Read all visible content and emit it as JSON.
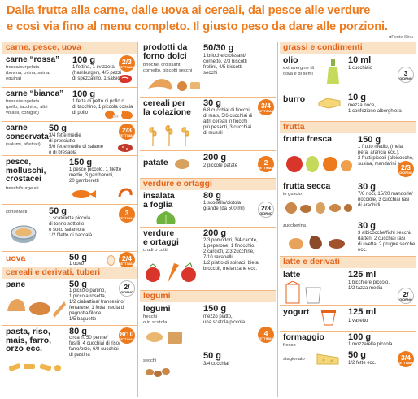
{
  "header": {
    "line1": "Dalla frutta alla carne, dalle uova ai cereali, dal pesce alle verdure",
    "line2": "e così via fino al menu completo. Il giusto peso da dare alle porzioni.",
    "source": "■Fonte Sinu"
  },
  "col1": {
    "cat_meat": "carne, pesce, uova",
    "rossa": {
      "name": "carne “rossa”",
      "sub": "fresca/surgelata\n(bovina, ovina, suina,\nequina)",
      "weight": "100 g",
      "desc": "1 fettina, 1 svizzera\n(hamburger), 4/5 pezzi\ndi spezzatino, 1 salsiccia",
      "badge": "2/3",
      "badge_period": "SETTIMANA"
    },
    "bianca": {
      "name": "carne “bianca”",
      "sub": "fresca/surgelata\n(pollo, tacchino, altri\nvolatili, coniglio)",
      "weight": "100 g",
      "desc": "1 fetta di petto di pollo o\ndi tacchino, 1 piccola coscia\ndi pollo"
    },
    "conservata": {
      "name": "carne\nconservata",
      "sub": "(salumi, affettati)",
      "weight": "50 g",
      "desc": "3/4 fette medie\ndi prosciutto,\n5/6 fette medie di salame\no di bresaola",
      "badge": "2/3",
      "badge_period": "SETTIMANA"
    },
    "pesce": {
      "name": "pesce,\nmolluschi,\ncrostacei",
      "sub": "freschi/surgelati",
      "weight": "150 g",
      "desc": "1 pesce piccolo, 1 filetto\nmedio, 3 gamberoni,\n20 gamberetti"
    },
    "conservati": {
      "sub": "conservati",
      "weight": "50 g",
      "desc": "1 scatoletta piccola\ndi tonno sott'olio\no sotto salamoia,\n1/2 filetto di baccalà",
      "badge": "3",
      "badge_period": "SETTIMANA"
    },
    "uova": {
      "name": "uova",
      "weight": "50 g",
      "desc": "1 uovo",
      "badge": "2/4",
      "badge_period": "SETTIMANA"
    },
    "cat_cereali": "cereali e derivati, tuberi",
    "pane": {
      "name": "pane",
      "weight": "50 g",
      "desc": "1 piccolo panino,\n1 piccola rosetta,\n1/2 ciabattina/ francesino/\nferrarese, 1 fetta media di\npagnotta/filone,\n1/5 baguette",
      "badge": "2/",
      "badge_period": "GIORNO"
    },
    "pasta": {
      "name": "pasta, riso,\nmais, farro,\norzo ecc.",
      "sub": "",
      "weight": "80 g",
      "desc": "circa n. 50 penne/\nfusilli, 4 cucchiai di riso/\nfarro/orzo, 6/8 cucchiai\ndi pastina",
      "badge": "8/10",
      "badge_period": "SETTIMANA"
    }
  },
  "col2": {
    "prodotti": {
      "name": "prodotti da\nforno dolci",
      "sub": "brioche, croissant,\ncornetto, biscotti secchi",
      "weight": "50/30 g",
      "desc": "1 brioche/croissant/\ncornetto, 2/3 biscotti\nfrollini, 4/5 biscotti\nsecchi"
    },
    "colazione": {
      "name": "cereali per\nla colazione",
      "weight": "30 g",
      "desc": "6/8 cucchiai di fiocchi\ndi mais, 5/6 cucchiai di\naltri cereali in fiocchi\npiù pesanti, 3 cucchiai\ndi muesli",
      "badge": "3/4",
      "badge_period": "SETTIMANA"
    },
    "patate": {
      "name": "patate",
      "weight": "200 g",
      "desc": "2 piccole patate",
      "badge": "2",
      "badge_period": "SETTIMANA"
    },
    "cat_verdure": "verdure e ortaggi",
    "insalata": {
      "name": "insalata\na foglia",
      "weight": "80 g",
      "desc": "1 scodella/ciotola\ngrande (da 500 ml)",
      "badge": "2/3",
      "badge_period": "GIORNO"
    },
    "verdure": {
      "name": "verdure\ne ortaggi",
      "sub": "crudi o cotti",
      "weight": "200 g",
      "desc": "2/3 pomodori, 3/4 carote,\n1 peperone, 1 finocchio,\n2 carciofi, 2/3 zucchine,\n7/10 ravanelli,\n1/2 piatto di spinaci, bieta,\nbroccoli, melanzane ecc."
    },
    "cat_legumi": "legumi",
    "legumi": {
      "name": "legumi",
      "sub": "freschi\no in scatola",
      "weight": "150 g",
      "desc": "mezzo piatto,\nuna scatola piccola",
      "badge": "4",
      "badge_period": "SETTIMANA"
    },
    "secchi": {
      "sub": "secchi",
      "weight": "50 g",
      "desc": "3/4 cucchiai"
    }
  },
  "col3": {
    "cat_grassi": "grassi e condimenti",
    "olio": {
      "name": "olio",
      "sub": "extravergine di\noliva e di semi",
      "weight": "10 ml",
      "desc": "1 cucchiaio",
      "badge": "3",
      "badge_period": "GIORNO"
    },
    "burro": {
      "name": "burro",
      "weight": "10 g",
      "desc": "mezza noce,\n1 confezione alberghiera"
    },
    "cat_frutta": "frutta",
    "fresca": {
      "name": "frutta fresca",
      "weight": "150 g",
      "desc": "1 frutto medio, (mela,\npera, arancia ecc.),\n2 frutti piccoli (albicocche,\nsusina, mandarini ecc.)",
      "badge": "2/3",
      "badge_period": "GIORNO"
    },
    "secca": {
      "name": "frutta secca",
      "sub": "in guscio",
      "weight": "30 g",
      "desc": "7/8 noci, 15/20 mandorle/\nnocciole, 3 cucchiai rasi\ndi arachidi."
    },
    "zuccherina": {
      "sub": "zuccherina",
      "weight": "30 g",
      "desc": "3 albicocche/fichi secchi/\ndatteri, 2 cucchiai rasi\ndi uvetta, 2 prugne secche\necc."
    },
    "cat_latte": "latte e derivati",
    "latte": {
      "name": "latte",
      "weight": "125 ml",
      "desc": "1 bicchiere piccolo,\n1/2 tazza media",
      "badge": "2/",
      "badge_period": "GIORNO"
    },
    "yogurt": {
      "name": "yogurt",
      "weight": "125 ml",
      "desc": "1 vasetto"
    },
    "formaggio": {
      "name": "formaggio",
      "sub": "fresco",
      "weight": "100 g",
      "desc": "1 mozzarella piccola",
      "badge": "3/4",
      "badge_period": "SETTIMANA"
    },
    "stagionato": {
      "sub": "stagionato",
      "weight": "50 g",
      "desc": "1/2 fette ecc."
    }
  },
  "colors": {
    "orange": "#ee7a1e",
    "band": "#fae2c6",
    "divider": "#f3b77f",
    "red": "#d9352a"
  }
}
